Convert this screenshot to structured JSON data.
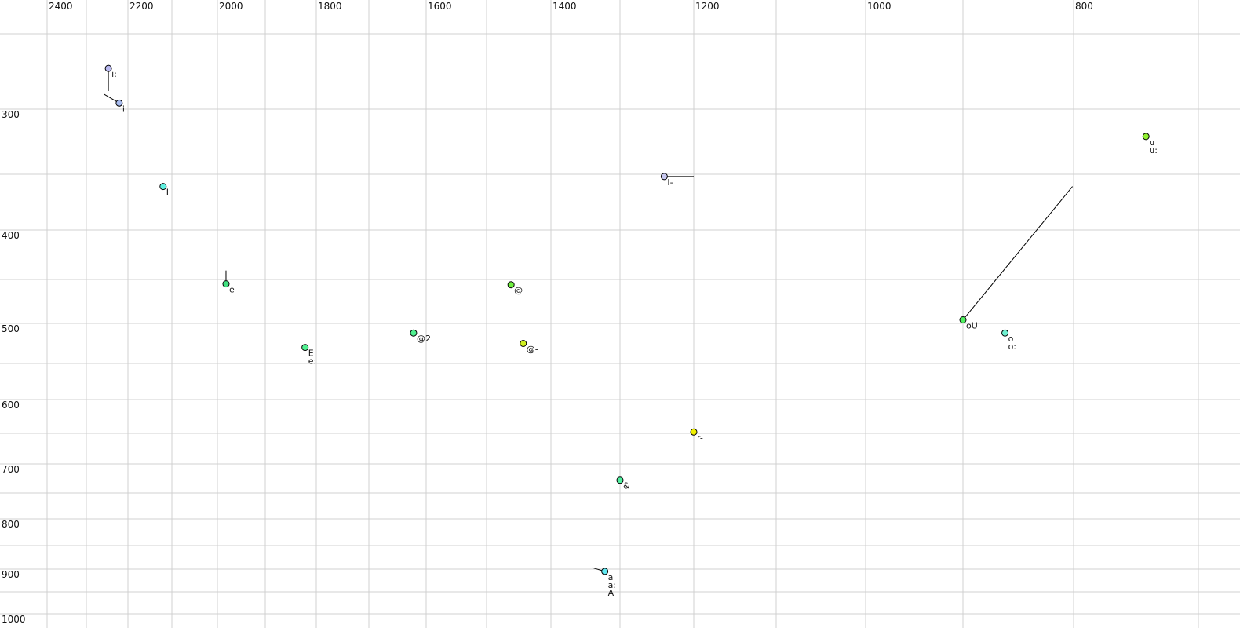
{
  "chart_data": {
    "type": "scatter",
    "title": "",
    "xlabel": "",
    "ylabel": "",
    "x_axis": {
      "reversed": true,
      "scale": "nonlinear",
      "range": [
        2400,
        700
      ],
      "tick_labels": [
        "2400",
        "2200",
        "2000",
        "1800",
        "1600",
        "1400",
        "1200",
        "1000",
        "800"
      ]
    },
    "y_axis": {
      "reversed": true,
      "scale": "nonlinear",
      "range": [
        250,
        1000
      ],
      "tick_labels": [
        "300",
        "400",
        "500",
        "600",
        "700",
        "800",
        "900",
        "1000"
      ]
    },
    "grid": true,
    "grid_color": "#d0d0d0",
    "points": [
      {
        "labels": [
          "i:"
        ],
        "f2": 2247,
        "f1": 273,
        "color": "#b8b8f0",
        "trail": {
          "f2": 2247,
          "f1": 288
        }
      },
      {
        "labels": [
          "i"
        ],
        "f2": 2221,
        "f1": 296,
        "color": "#a8bcf0",
        "trail": {
          "f2": 2258,
          "f1": 290
        }
      },
      {
        "labels": [
          "I"
        ],
        "f2": 2120,
        "f1": 361,
        "color": "#60f0e0"
      },
      {
        "labels": [
          "e"
        ],
        "f2": 1982,
        "f1": 455,
        "color": "#40e080",
        "trail": {
          "f2": 1982,
          "f1": 441
        }
      },
      {
        "labels": [
          "E",
          "e:"
        ],
        "f2": 1822,
        "f1": 530,
        "color": "#50f090"
      },
      {
        "labels": [
          "@2"
        ],
        "f2": 1622,
        "f1": 512,
        "color": "#50f090"
      },
      {
        "labels": [
          "@"
        ],
        "f2": 1462,
        "f1": 456,
        "color": "#70f040"
      },
      {
        "labels": [
          "@-"
        ],
        "f2": 1443,
        "f1": 525,
        "color": "#d0f020"
      },
      {
        "labels": [
          "I-"
        ],
        "f2": 1240,
        "f1": 352,
        "color": "#c8c8f0",
        "trail": {
          "f2": 1200,
          "f1": 352
        }
      },
      {
        "labels": [
          "r-"
        ],
        "f2": 1200,
        "f1": 648,
        "color": "#f0f000",
        "trail": {
          "f2": 1200,
          "f1": 643
        }
      },
      {
        "labels": [
          "&"
        ],
        "f2": 1300,
        "f1": 728,
        "color": "#50f0a0",
        "trail": {
          "f2": 1300,
          "f1": 733
        }
      },
      {
        "labels": [
          "a",
          "a:",
          "A"
        ],
        "f2": 1322,
        "f1": 905,
        "color": "#60e8f0",
        "trail": {
          "f2": 1340,
          "f1": 897
        }
      },
      {
        "labels": [
          "oU"
        ],
        "f2": 900,
        "f1": 496,
        "color": "#50f060",
        "trail": {
          "f2": 801,
          "f1": 361
        }
      },
      {
        "labels": [
          "o",
          "o:"
        ],
        "f2": 862,
        "f1": 512,
        "color": "#70f0d0"
      },
      {
        "labels": [
          "u",
          "u:"
        ],
        "f2": 742,
        "f1": 321,
        "color": "#90f030"
      }
    ]
  }
}
